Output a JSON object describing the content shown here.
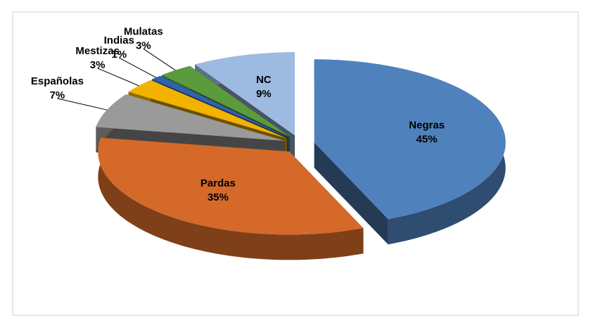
{
  "chart_data": {
    "type": "pie",
    "categories": [
      "Negras",
      "Pardas",
      "Españolas",
      "Mestizas",
      "Indias",
      "Mulatas",
      "NC"
    ],
    "values": [
      45,
      35,
      7,
      3,
      1,
      3,
      9
    ],
    "value_labels": [
      "45%",
      "35%",
      "7%",
      "3%",
      "1%",
      "3%",
      "9%"
    ],
    "colors": [
      "#4f81bd",
      "#d4692a",
      "#9a9a9a",
      "#f2b200",
      "#2f62b0",
      "#5c9b3c",
      "#9dbbe1"
    ]
  }
}
